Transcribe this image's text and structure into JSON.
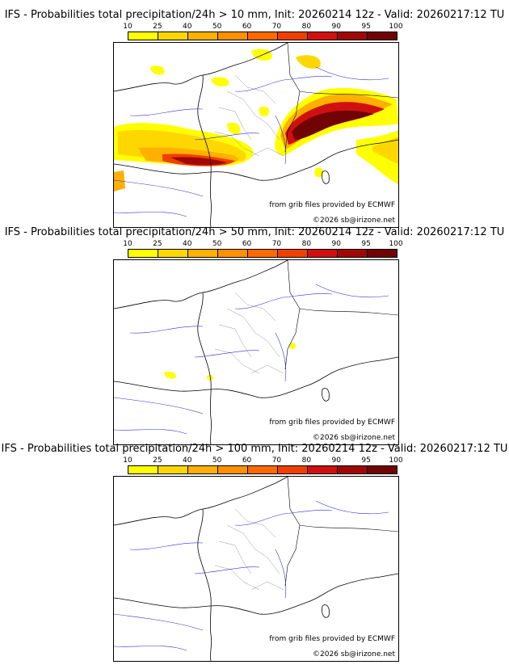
{
  "colorbar": {
    "ticks": [
      "10",
      "25",
      "40",
      "50",
      "60",
      "70",
      "80",
      "90",
      "95",
      "100"
    ],
    "colors": [
      "#ffff00",
      "#ffd700",
      "#ffb000",
      "#ff9000",
      "#ff6a00",
      "#f04000",
      "#d01010",
      "#a00808",
      "#700404"
    ]
  },
  "panels": [
    {
      "title": "IFS - Probabilities total precipitation/24h > 10 mm, Init: 20260214 12z - Valid: 20260217:12 TU",
      "credit_source": "from grib files provided by ECMWF",
      "credit_copyright": "©2026 sb@irizone.net"
    },
    {
      "title": "IFS - Probabilities total precipitation/24h > 50 mm, Init: 20260214 12z - Valid: 20260217:12 TU",
      "credit_source": "from grib files provided by ECMWF",
      "credit_copyright": "©2026 sb@irizone.net"
    },
    {
      "title": "IFS - Probabilities total precipitation/24h > 100 mm, Init: 20260214 12z - Valid: 20260217:12 TU",
      "credit_source": "from grib files provided by ECMWF",
      "credit_copyright": "©2026 sb@irizone.net"
    }
  ]
}
